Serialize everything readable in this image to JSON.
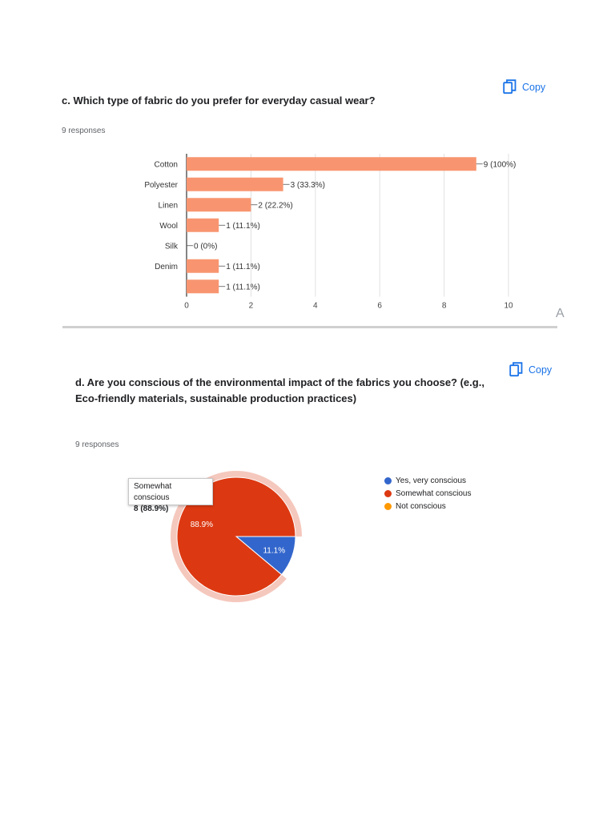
{
  "section_c": {
    "title": "c. Which type of fabric do you prefer for everyday casual wear?",
    "responses": "9 responses",
    "copy_label": "Copy"
  },
  "section_d": {
    "title_line1": "d. Are you conscious of the environmental impact of the fabrics you choose? (e.g.,",
    "title_line2": "Eco-friendly materials, sustainable production practices)",
    "responses": "9 responses",
    "copy_label": "Copy",
    "tooltip": {
      "label": "Somewhat conscious",
      "value": "8 (88.9%)"
    }
  },
  "stray_glyph": "A",
  "colors": {
    "bar": "#f89570",
    "accent": "#1a73e8",
    "pie_blue": "#3366cc",
    "pie_red": "#dc3912",
    "pie_orange": "#ff9900"
  },
  "icons": {
    "copy": "copy-icon"
  },
  "chart_data": [
    {
      "type": "bar",
      "orientation": "horizontal",
      "categories": [
        "Cotton",
        "Polyester",
        "Linen",
        "Wool",
        "Silk",
        "Denim",
        ""
      ],
      "values": [
        9,
        3,
        2,
        1,
        0,
        1,
        1
      ],
      "data_labels": [
        "9 (100%)",
        "3 (33.3%)",
        "2 (22.2%)",
        "1 (11.1%)",
        "0 (0%)",
        "1 (11.1%)",
        "1 (11.1%)"
      ],
      "xlim": [
        0,
        10
      ],
      "xticks": [
        "0",
        "2",
        "4",
        "6",
        "8",
        "10"
      ],
      "grid": true,
      "color": "#f89570"
    },
    {
      "type": "pie",
      "labels": [
        "Yes, very conscious",
        "Somewhat conscious",
        "Not conscious"
      ],
      "values": [
        1,
        8,
        0
      ],
      "slice_labels": [
        "11.1%",
        "88.9%",
        ""
      ],
      "colors": [
        "#3366cc",
        "#dc3912",
        "#ff9900"
      ],
      "highlighted": "Somewhat conscious",
      "legend": "right"
    }
  ]
}
